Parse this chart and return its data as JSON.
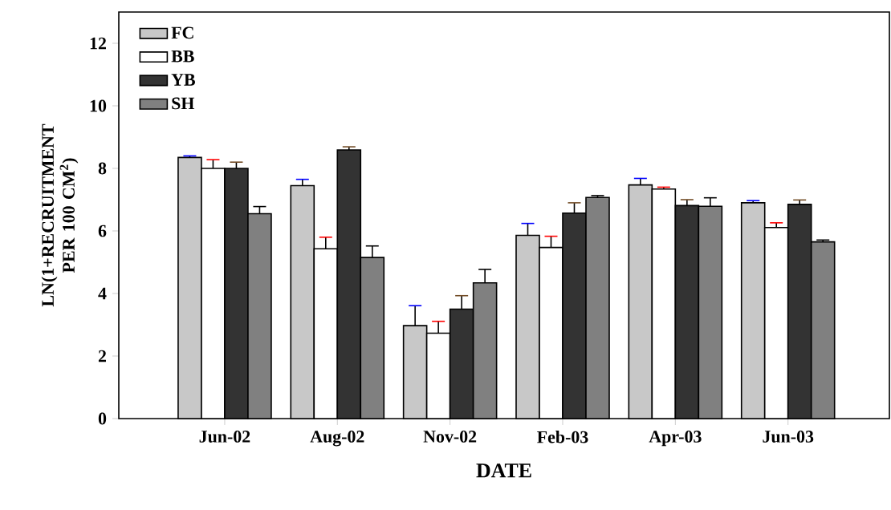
{
  "chart_data": {
    "type": "bar",
    "xlabel": "DATE",
    "ylabel": "LN(1+RECRUITMENT PER 100 CM$^{2}$)",
    "categories": [
      "Jun-02",
      "Aug-02",
      "Nov-02",
      "Feb-03",
      "Apr-03",
      "Jun-03"
    ],
    "series": [
      {
        "name": "FC",
        "color": "#c8c8c8",
        "values": [
          8.35,
          7.45,
          2.97,
          5.86,
          7.47,
          6.9
        ],
        "errors": [
          0.05,
          0.2,
          0.64,
          0.38,
          0.21,
          0.07
        ]
      },
      {
        "name": "BB",
        "color": "#ffffff",
        "values": [
          8.0,
          5.43,
          2.73,
          5.47,
          7.34,
          6.11
        ],
        "errors": [
          0.28,
          0.37,
          0.38,
          0.36,
          0.06,
          0.15
        ]
      },
      {
        "name": "YB",
        "color": "#333333",
        "values": [
          8.0,
          8.59,
          3.5,
          6.57,
          6.81,
          6.85
        ],
        "errors": [
          0.2,
          0.1,
          0.43,
          0.33,
          0.19,
          0.14
        ]
      },
      {
        "name": "SH",
        "color": "#808080",
        "values": [
          6.55,
          5.15,
          4.34,
          7.07,
          6.79,
          5.65
        ],
        "errors": [
          0.23,
          0.37,
          0.43,
          0.06,
          0.27,
          0.06
        ]
      }
    ],
    "ylim": [
      0,
      13
    ],
    "yticks": [
      0,
      2,
      4,
      6,
      8,
      10,
      12
    ],
    "legend": "top left",
    "grid": false
  }
}
